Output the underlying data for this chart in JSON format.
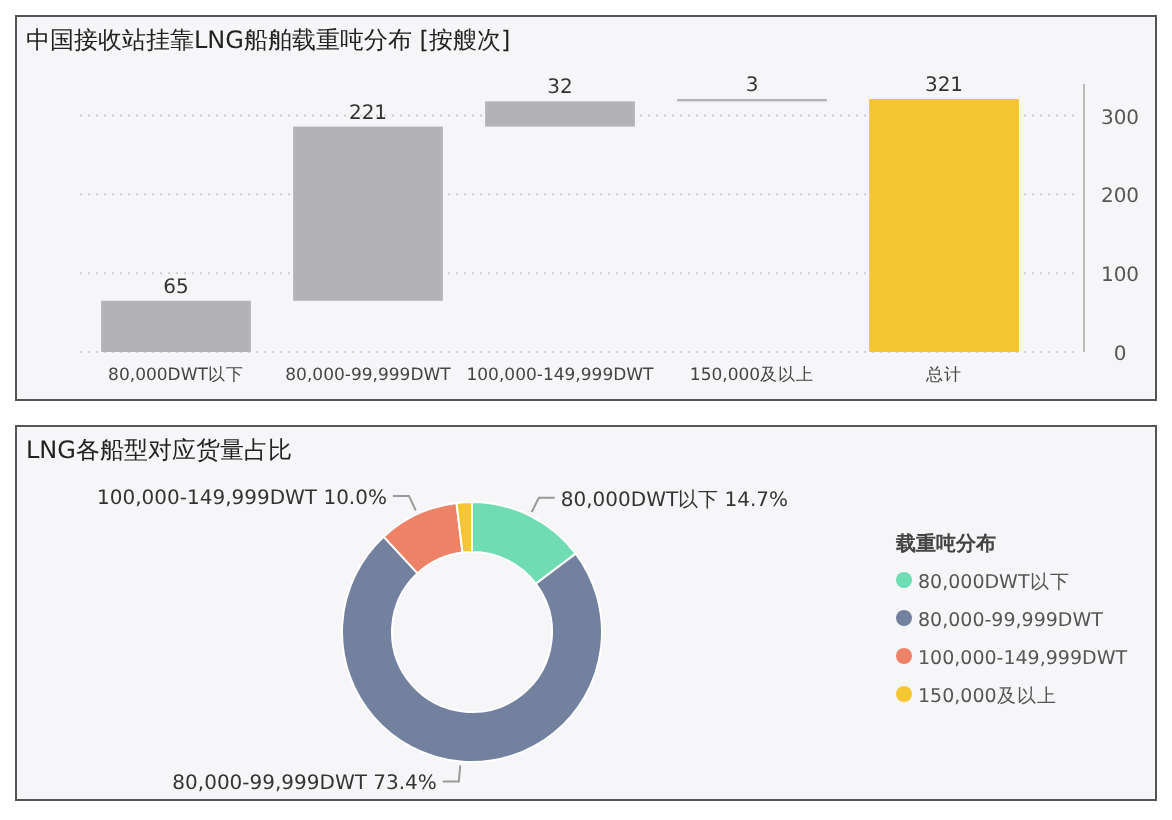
{
  "chart_data": [
    {
      "type": "bar",
      "title": "中国接收站挂靠LNG船舶载重吨分布 [按艘次]",
      "categories": [
        "80,000DWT以下",
        "80,000-99,999DWT",
        "100,000-149,999DWT",
        "150,000及以上",
        "总计"
      ],
      "values": [
        65,
        221,
        32,
        3,
        321
      ],
      "base": [
        0,
        65,
        286,
        318,
        0
      ],
      "colors": [
        "#b3b2b4",
        "#b3b2b4",
        "#b3b2b4",
        "#b3b2b4",
        "#f4c631"
      ],
      "ylim": [
        0,
        340
      ],
      "yticks": [
        0,
        100,
        200,
        300
      ],
      "grid": "y",
      "data_labels": true
    },
    {
      "type": "donut",
      "title": "LNG各船型对应货量占比",
      "categories": [
        "80,000DWT以下",
        "80,000-99,999DWT",
        "100,000-149,999DWT",
        "150,000及以上"
      ],
      "values": [
        14.7,
        73.4,
        10.0,
        1.9
      ],
      "colors": [
        "#6fdcb4",
        "#73819e",
        "#ed8266",
        "#f4c631"
      ],
      "value_labels": [
        "80,000DWT以下 14.7%",
        "80,000-99,999DWT 73.4%",
        "100,000-149,999DWT 10.0%",
        null
      ],
      "legend": "right",
      "legend_title": "载重吨分布"
    }
  ]
}
